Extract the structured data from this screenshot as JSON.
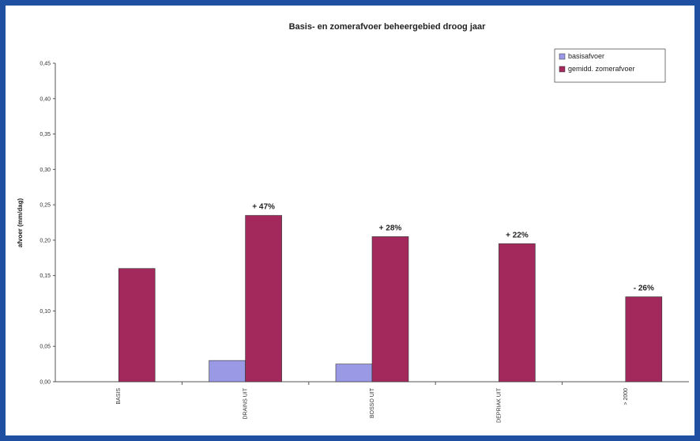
{
  "chart_data": {
    "type": "bar",
    "title": "Basis- en zomerafvoer beheergebied droog jaar",
    "xlabel": "",
    "ylabel": "afvoer (mm/dag)",
    "ylim": [
      0,
      0.45
    ],
    "yticks": [
      "0,00",
      "0,05",
      "0,10",
      "0,15",
      "0,20",
      "0,25",
      "0,30",
      "0,35",
      "0,40",
      "0,45"
    ],
    "categories": [
      "BASIS",
      "DRAINS UIT",
      "BOSSO UIT",
      "DEPRIAK UIT",
      "> 2000"
    ],
    "series": [
      {
        "name": "basisafvoer",
        "color": "#9999e6",
        "values": [
          null,
          0.03,
          0.025,
          null,
          null
        ]
      },
      {
        "name": "gemidd. zomerafvoer",
        "color": "#a3295d",
        "values": [
          0.16,
          0.235,
          0.205,
          0.195,
          0.12
        ]
      }
    ],
    "data_labels": [
      "",
      "+ 47%",
      "+ 28%",
      "+ 22%",
      "- 26%"
    ],
    "legend_position": "top-right",
    "grid": false
  }
}
